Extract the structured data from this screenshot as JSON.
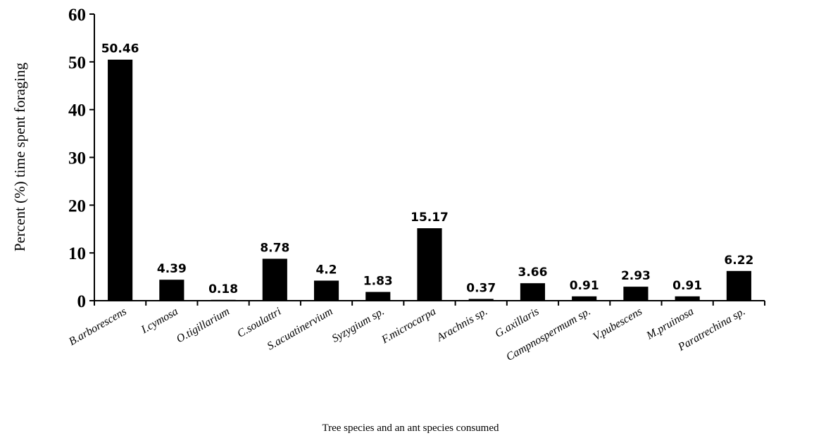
{
  "chart_data": {
    "type": "bar",
    "categories": [
      "B.arborescens",
      "I.cymosa",
      "O.tigillarium",
      "C.soulattri",
      "S.acuatinervium",
      "Syzygium sp.",
      "F.microcarpa",
      "Arachnis sp.",
      "G.axillaris",
      "Campnospermum sp.",
      "V.pubescens",
      "M.pruinosa",
      "Paratrechina sp."
    ],
    "values": [
      50.46,
      4.39,
      0.18,
      8.78,
      4.2,
      1.83,
      15.17,
      0.37,
      3.66,
      0.91,
      2.93,
      0.91,
      6.22
    ],
    "data_labels": [
      "50.46",
      "4.39",
      "0.18",
      "8.78",
      "4.2",
      "1.83",
      "15.17",
      "0.37",
      "3.66",
      "0.91",
      "2.93",
      "0.91",
      "6.22"
    ],
    "xlabel": "Tree species and an ant species consumed",
    "ylabel": "Percent (%) time spent foraging",
    "ylim": [
      0,
      60
    ],
    "yticks": [
      0,
      10,
      20,
      30,
      40,
      50,
      60
    ],
    "grid": false,
    "legend": "none",
    "bar_color": "#000000"
  }
}
